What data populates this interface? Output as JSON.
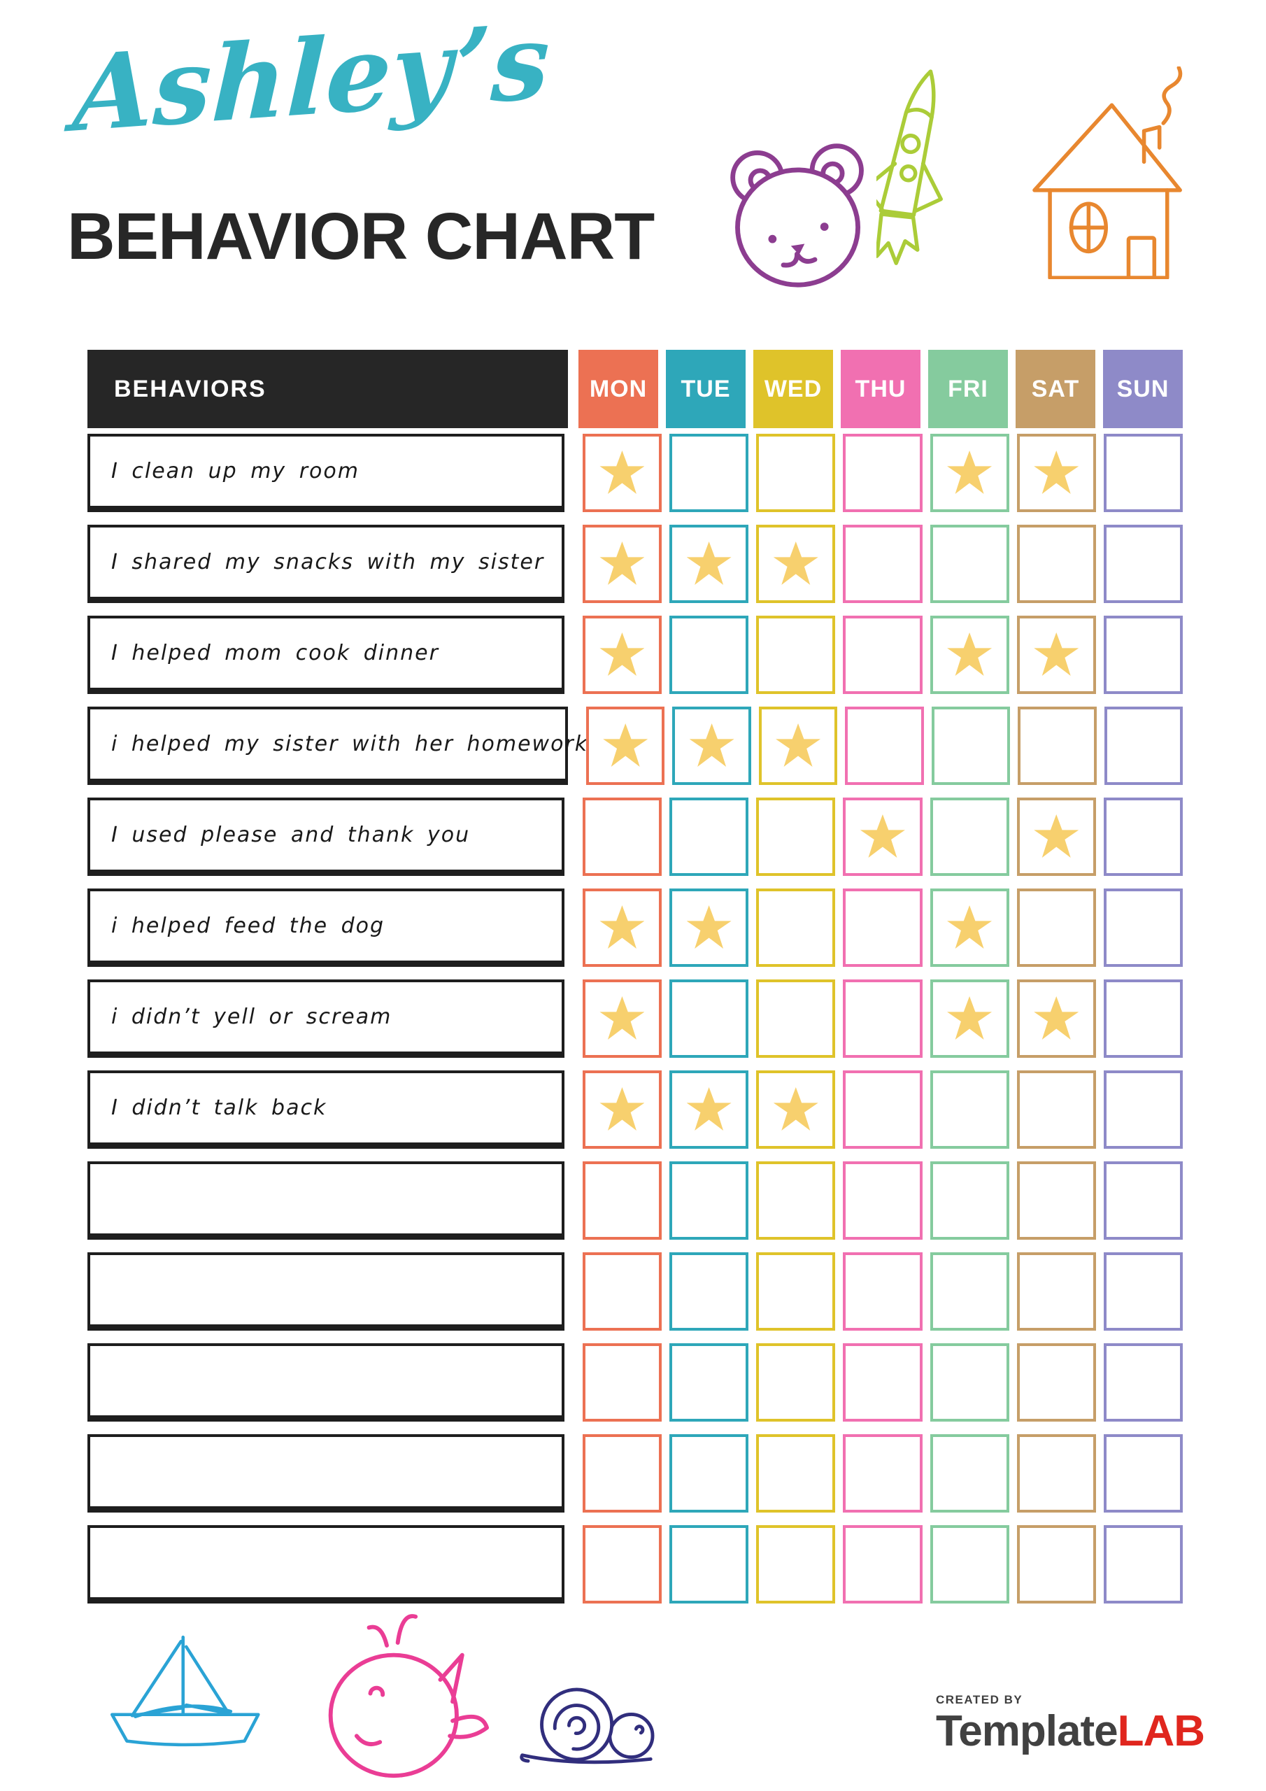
{
  "header": {
    "script_title": "Ashley’s",
    "main_title": "BEHAVIOR CHART"
  },
  "top_doodles": [
    {
      "name": "bear",
      "color": "#8c3d90"
    },
    {
      "name": "rocket",
      "color": "#abcc38"
    },
    {
      "name": "house",
      "color": "#e8872f"
    }
  ],
  "table": {
    "behaviors_header": "BEHAVIORS",
    "days": [
      {
        "label": "MON",
        "color": "#ec7153"
      },
      {
        "label": "TUE",
        "color": "#2ea7b9"
      },
      {
        "label": "WED",
        "color": "#dfc32a"
      },
      {
        "label": "THU",
        "color": "#f170b1"
      },
      {
        "label": "FRI",
        "color": "#85cb9e"
      },
      {
        "label": "SAT",
        "color": "#c69e68"
      },
      {
        "label": "SUN",
        "color": "#8e8ac8"
      }
    ],
    "star_color": "#f7d06e",
    "rows": [
      {
        "behavior": "I clean up my room",
        "stars": [
          "MON",
          "FRI",
          "SAT"
        ]
      },
      {
        "behavior": "I shared my snacks with my sister",
        "stars": [
          "MON",
          "TUE",
          "WED"
        ]
      },
      {
        "behavior": "I helped mom cook dinner",
        "stars": [
          "MON",
          "FRI",
          "SAT"
        ]
      },
      {
        "behavior": "i helped my sister with her homework",
        "stars": [
          "MON",
          "TUE",
          "WED"
        ]
      },
      {
        "behavior": "I used please and thank you",
        "stars": [
          "THU",
          "SAT"
        ]
      },
      {
        "behavior": "i helped feed the dog",
        "stars": [
          "MON",
          "TUE",
          "FRI"
        ]
      },
      {
        "behavior": "i didn’t yell or scream",
        "stars": [
          "MON",
          "FRI",
          "SAT"
        ]
      },
      {
        "behavior": "I didn’t talk back",
        "stars": [
          "MON",
          "TUE",
          "WED"
        ]
      },
      {
        "behavior": "",
        "stars": []
      },
      {
        "behavior": "",
        "stars": []
      },
      {
        "behavior": "",
        "stars": []
      },
      {
        "behavior": "",
        "stars": []
      },
      {
        "behavior": "",
        "stars": []
      }
    ]
  },
  "bottom_doodles": [
    {
      "name": "sailboat",
      "color": "#2aa3d5"
    },
    {
      "name": "whale",
      "color": "#ea3d95"
    },
    {
      "name": "snail",
      "color": "#312e7d"
    }
  ],
  "footer": {
    "created_by": "CREATED BY",
    "brand_part1": "Template",
    "brand_part2": "LAB",
    "brand_color1": "#414141",
    "brand_color2": "#e0261e",
    "created_by_color": "#3f3f3f"
  },
  "colors": {
    "script_title": "#38b2c3",
    "main_title": "#272727",
    "header_bg": "#262626",
    "header_text": "#ffffff",
    "row_border": "#1e1e1e"
  }
}
